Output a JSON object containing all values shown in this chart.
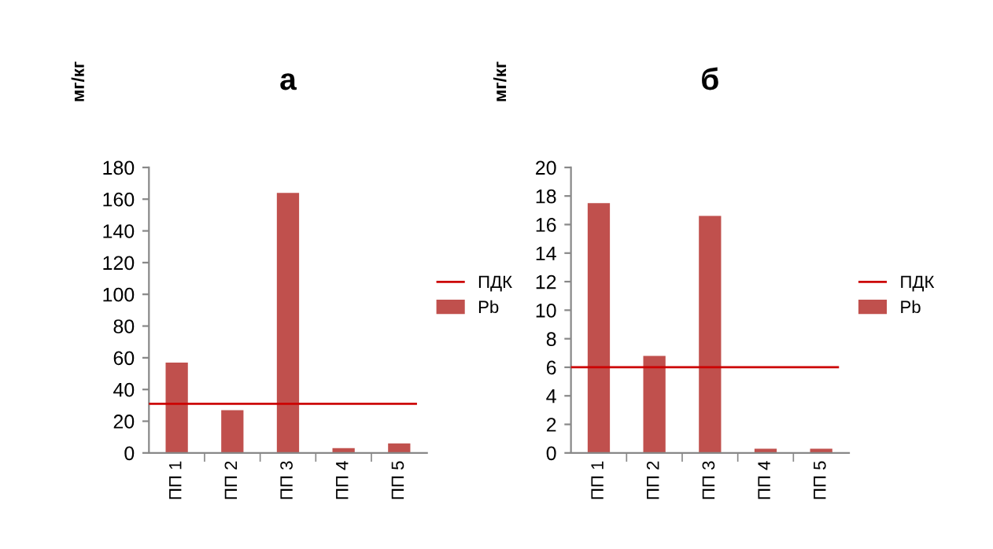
{
  "chart_data": [
    {
      "type": "bar",
      "title": "а",
      "ylabel": "мг/кг",
      "categories": [
        "ПП 1",
        "ПП 2",
        "ПП 3",
        "ПП 4",
        "ПП 5"
      ],
      "series": [
        {
          "name": "Pb",
          "color": "#c0504d",
          "values": [
            57,
            27,
            164,
            3,
            6
          ]
        }
      ],
      "ref_lines": [
        {
          "axis": "y",
          "value": 31,
          "label": "ПДК",
          "color": "#cc0000"
        }
      ],
      "ylim": [
        0,
        180
      ],
      "yticks": [
        0,
        20,
        40,
        60,
        80,
        100,
        120,
        140,
        160,
        180
      ],
      "grid": false,
      "legend": "right"
    },
    {
      "type": "bar",
      "title": "б",
      "ylabel": "мг/кг",
      "categories": [
        "ПП 1",
        "ПП 2",
        "ПП 3",
        "ПП 4",
        "ПП 5"
      ],
      "series": [
        {
          "name": "Pb",
          "color": "#c0504d",
          "values": [
            17.5,
            6.8,
            16.6,
            0.3,
            0.3
          ]
        }
      ],
      "ref_lines": [
        {
          "axis": "y",
          "value": 6,
          "label": "ПДК",
          "color": "#cc0000"
        }
      ],
      "ylim": [
        0,
        20
      ],
      "yticks": [
        0,
        2,
        4,
        6,
        8,
        10,
        12,
        14,
        16,
        18,
        20
      ],
      "grid": false,
      "legend": "right"
    }
  ]
}
